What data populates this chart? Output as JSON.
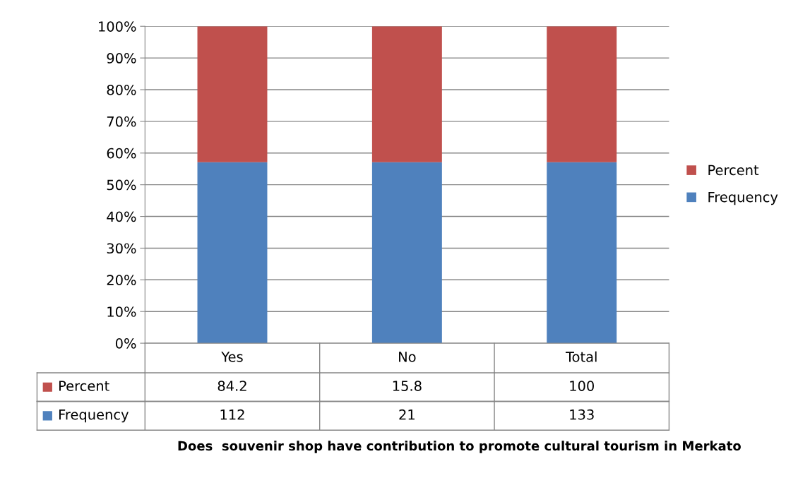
{
  "chart_data": {
    "type": "bar",
    "stacked": true,
    "annotations": [
      "84.2",
      "15.8",
      "100",
      "112",
      "21",
      "133",
      "Does  souvenir shop have contribution to promote cultural tourism in Merkato"
    ],
    "categories": [
      "Yes",
      "No",
      "Total"
    ],
    "series": [
      {
        "name": "Frequency",
        "color": "#4f81bd",
        "values": [
          57.1,
          57.1,
          57.1
        ]
      },
      {
        "name": "Percent",
        "color": "#c0504d",
        "values": [
          42.9,
          42.9,
          42.9
        ]
      }
    ],
    "ylim": [
      0,
      100
    ],
    "yticks": [
      {
        "value": 0,
        "label": "0%"
      },
      {
        "value": 10,
        "label": "10%"
      },
      {
        "value": 20,
        "label": "20%"
      },
      {
        "value": 30,
        "label": "30%"
      },
      {
        "value": 40,
        "label": "40%"
      },
      {
        "value": 50,
        "label": "50%"
      },
      {
        "value": 60,
        "label": "60%"
      },
      {
        "value": 70,
        "label": "70%"
      },
      {
        "value": 80,
        "label": "80%"
      },
      {
        "value": 90,
        "label": "90%"
      },
      {
        "value": 100,
        "label": "100%"
      }
    ],
    "grid": "y",
    "legend": "right"
  }
}
